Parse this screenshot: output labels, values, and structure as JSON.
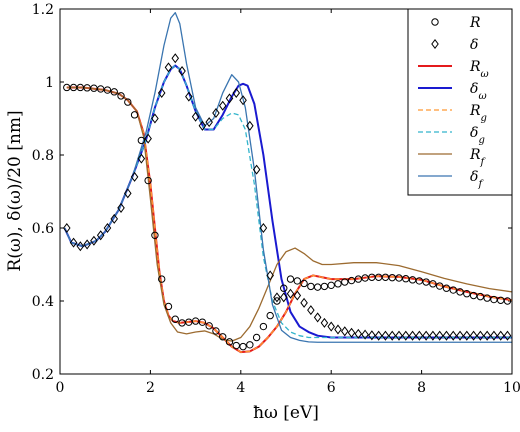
{
  "chart_data": {
    "type": "line",
    "title": "",
    "xlabel": "ħω [eV]",
    "ylabel": "R(ω),  δ(ω)/20 [nm]",
    "xlim": [
      0,
      10
    ],
    "ylim": [
      0.2,
      1.2
    ],
    "xticks": [
      0,
      2,
      4,
      6,
      8,
      10
    ],
    "yticks": [
      0.2,
      0.4,
      0.6,
      0.8,
      1,
      1.2
    ],
    "grid": false,
    "legend_position": "top-right",
    "series": [
      {
        "name": "R",
        "style": "markers",
        "marker": "circle",
        "color": "#000000",
        "x": [
          0.15,
          0.3,
          0.45,
          0.6,
          0.75,
          0.9,
          1.05,
          1.2,
          1.35,
          1.5,
          1.65,
          1.8,
          1.95,
          2.1,
          2.25,
          2.4,
          2.55,
          2.7,
          2.85,
          3.0,
          3.15,
          3.3,
          3.45,
          3.6,
          3.75,
          3.9,
          4.05,
          4.2,
          4.35,
          4.5,
          4.65,
          4.8,
          4.95,
          5.1,
          5.25,
          5.4,
          5.55,
          5.7,
          5.85,
          6.0,
          6.15,
          6.3,
          6.45,
          6.6,
          6.75,
          6.9,
          7.05,
          7.2,
          7.35,
          7.5,
          7.65,
          7.8,
          7.95,
          8.1,
          8.25,
          8.4,
          8.55,
          8.7,
          8.85,
          9.0,
          9.15,
          9.3,
          9.45,
          9.6,
          9.75,
          9.9
        ],
        "y": [
          0.985,
          0.985,
          0.985,
          0.984,
          0.983,
          0.981,
          0.978,
          0.973,
          0.962,
          0.945,
          0.91,
          0.84,
          0.73,
          0.58,
          0.46,
          0.385,
          0.35,
          0.34,
          0.342,
          0.345,
          0.342,
          0.332,
          0.318,
          0.302,
          0.288,
          0.278,
          0.275,
          0.28,
          0.3,
          0.33,
          0.36,
          0.4,
          0.435,
          0.46,
          0.455,
          0.448,
          0.44,
          0.438,
          0.44,
          0.443,
          0.447,
          0.452,
          0.456,
          0.46,
          0.463,
          0.465,
          0.465,
          0.465,
          0.464,
          0.463,
          0.461,
          0.458,
          0.455,
          0.452,
          0.447,
          0.441,
          0.435,
          0.43,
          0.425,
          0.42,
          0.415,
          0.412,
          0.408,
          0.404,
          0.402,
          0.4
        ]
      },
      {
        "name": "δ",
        "style": "markers",
        "marker": "diamond",
        "color": "#000000",
        "x": [
          0.15,
          0.3,
          0.45,
          0.6,
          0.75,
          0.9,
          1.05,
          1.2,
          1.35,
          1.5,
          1.65,
          1.8,
          1.95,
          2.1,
          2.25,
          2.4,
          2.55,
          2.7,
          2.85,
          3.0,
          3.15,
          3.3,
          3.45,
          3.6,
          3.75,
          3.9,
          4.05,
          4.2,
          4.35,
          4.5,
          4.65,
          4.8,
          4.95,
          5.1,
          5.25,
          5.4,
          5.55,
          5.7,
          5.85,
          6.0,
          6.15,
          6.3,
          6.45,
          6.6,
          6.75,
          6.9,
          7.05,
          7.2,
          7.35,
          7.5,
          7.65,
          7.8,
          7.95,
          8.1,
          8.25,
          8.4,
          8.55,
          8.7,
          8.85,
          9.0,
          9.15,
          9.3,
          9.45,
          9.6,
          9.75,
          9.9
        ],
        "y": [
          0.6,
          0.56,
          0.55,
          0.555,
          0.565,
          0.58,
          0.6,
          0.625,
          0.655,
          0.695,
          0.74,
          0.79,
          0.845,
          0.9,
          0.97,
          1.04,
          1.065,
          1.03,
          0.96,
          0.905,
          0.88,
          0.89,
          0.915,
          0.935,
          0.955,
          0.97,
          0.95,
          0.88,
          0.76,
          0.6,
          0.47,
          0.41,
          0.41,
          0.42,
          0.415,
          0.395,
          0.375,
          0.355,
          0.34,
          0.33,
          0.322,
          0.317,
          0.313,
          0.31,
          0.308,
          0.306,
          0.305,
          0.305,
          0.305,
          0.305,
          0.305,
          0.305,
          0.305,
          0.305,
          0.305,
          0.305,
          0.305,
          0.305,
          0.305,
          0.305,
          0.305,
          0.305,
          0.305,
          0.305,
          0.305,
          0.305
        ]
      },
      {
        "name": "R_ω",
        "style": "line",
        "color": "#e41a1c",
        "width": 2,
        "x": [
          0.15,
          0.5,
          1.0,
          1.3,
          1.5,
          1.7,
          1.85,
          2.0,
          2.1,
          2.2,
          2.3,
          2.4,
          2.5,
          2.65,
          2.8,
          3.0,
          3.2,
          3.4,
          3.6,
          3.8,
          4.0,
          4.2,
          4.4,
          4.6,
          4.8,
          5.0,
          5.2,
          5.4,
          5.6,
          5.8,
          6.0,
          6.5,
          7.0,
          7.5,
          8.0,
          8.5,
          9.0,
          9.5,
          10.0
        ],
        "y": [
          0.985,
          0.985,
          0.978,
          0.968,
          0.95,
          0.92,
          0.86,
          0.72,
          0.6,
          0.48,
          0.4,
          0.36,
          0.345,
          0.34,
          0.342,
          0.345,
          0.34,
          0.325,
          0.3,
          0.275,
          0.26,
          0.262,
          0.275,
          0.3,
          0.33,
          0.37,
          0.42,
          0.46,
          0.47,
          0.465,
          0.46,
          0.46,
          0.468,
          0.466,
          0.458,
          0.44,
          0.425,
          0.412,
          0.402
        ]
      },
      {
        "name": "δ_ω",
        "style": "line",
        "color": "#1a1ad0",
        "width": 2,
        "x": [
          0.1,
          0.25,
          0.5,
          0.8,
          1.0,
          1.3,
          1.6,
          1.9,
          2.1,
          2.3,
          2.45,
          2.55,
          2.65,
          2.8,
          3.0,
          3.2,
          3.4,
          3.6,
          3.8,
          3.95,
          4.05,
          4.15,
          4.3,
          4.5,
          4.7,
          4.9,
          5.1,
          5.3,
          5.5,
          5.7,
          6.0,
          6.5,
          7.0,
          8.0,
          9.0,
          10.0
        ],
        "y": [
          0.6,
          0.56,
          0.55,
          0.565,
          0.59,
          0.65,
          0.74,
          0.84,
          0.93,
          1.0,
          1.035,
          1.045,
          1.035,
          0.99,
          0.92,
          0.87,
          0.87,
          0.91,
          0.96,
          0.99,
          0.995,
          0.99,
          0.94,
          0.8,
          0.62,
          0.46,
          0.37,
          0.33,
          0.315,
          0.305,
          0.3,
          0.3,
          0.3,
          0.3,
          0.3,
          0.3
        ]
      },
      {
        "name": "R_g",
        "style": "dashed",
        "color": "#ff9933",
        "width": 1.3,
        "x": [
          0.15,
          0.5,
          1.0,
          1.3,
          1.5,
          1.7,
          1.85,
          2.0,
          2.1,
          2.2,
          2.3,
          2.4,
          2.5,
          2.65,
          2.8,
          3.0,
          3.2,
          3.4,
          3.6,
          3.8,
          4.0,
          4.2,
          4.4,
          4.6,
          4.8,
          5.0,
          5.2,
          5.4,
          5.6,
          5.8,
          6.0,
          6.5,
          7.0,
          7.5,
          8.0,
          8.5,
          9.0,
          9.5,
          10.0
        ],
        "y": [
          0.985,
          0.985,
          0.978,
          0.968,
          0.95,
          0.92,
          0.86,
          0.72,
          0.6,
          0.48,
          0.4,
          0.36,
          0.345,
          0.34,
          0.342,
          0.345,
          0.34,
          0.325,
          0.3,
          0.275,
          0.26,
          0.262,
          0.275,
          0.3,
          0.33,
          0.37,
          0.42,
          0.46,
          0.47,
          0.465,
          0.46,
          0.46,
          0.468,
          0.466,
          0.458,
          0.44,
          0.425,
          0.412,
          0.402
        ]
      },
      {
        "name": "δ_g",
        "style": "dashed",
        "color": "#33b5cc",
        "width": 1.3,
        "x": [
          0.1,
          0.25,
          0.5,
          0.8,
          1.0,
          1.3,
          1.6,
          1.9,
          2.1,
          2.3,
          2.45,
          2.55,
          2.65,
          2.8,
          3.0,
          3.2,
          3.4,
          3.6,
          3.8,
          3.95,
          4.1,
          4.3,
          4.5,
          4.7,
          4.9,
          5.1,
          5.3,
          5.5,
          5.7,
          6.0,
          6.5,
          7.0,
          8.0,
          9.0,
          10.0
        ],
        "y": [
          0.6,
          0.56,
          0.55,
          0.565,
          0.59,
          0.65,
          0.74,
          0.84,
          0.93,
          1.0,
          1.035,
          1.045,
          1.035,
          0.99,
          0.92,
          0.87,
          0.87,
          0.9,
          0.915,
          0.91,
          0.87,
          0.72,
          0.52,
          0.4,
          0.34,
          0.315,
          0.305,
          0.3,
          0.3,
          0.3,
          0.3,
          0.3,
          0.3,
          0.3,
          0.3
        ]
      },
      {
        "name": "R_f",
        "style": "line",
        "color": "#9c6b30",
        "width": 1.3,
        "x": [
          0.15,
          0.5,
          1.0,
          1.3,
          1.5,
          1.7,
          1.85,
          2.0,
          2.15,
          2.3,
          2.45,
          2.6,
          2.8,
          3.0,
          3.2,
          3.4,
          3.6,
          3.8,
          4.0,
          4.2,
          4.4,
          4.6,
          4.8,
          5.0,
          5.2,
          5.4,
          5.6,
          5.8,
          6.0,
          6.5,
          7.0,
          7.5,
          8.0,
          8.5,
          9.0,
          9.5,
          10.0
        ],
        "y": [
          0.985,
          0.985,
          0.978,
          0.968,
          0.95,
          0.92,
          0.85,
          0.68,
          0.5,
          0.39,
          0.34,
          0.315,
          0.31,
          0.315,
          0.318,
          0.31,
          0.295,
          0.29,
          0.3,
          0.33,
          0.38,
          0.44,
          0.5,
          0.535,
          0.545,
          0.53,
          0.51,
          0.5,
          0.5,
          0.505,
          0.505,
          0.497,
          0.48,
          0.462,
          0.447,
          0.434,
          0.425
        ]
      },
      {
        "name": "δ_f",
        "style": "line",
        "color": "#3a75b0",
        "width": 1.3,
        "x": [
          0.1,
          0.25,
          0.5,
          0.8,
          1.0,
          1.3,
          1.6,
          1.9,
          2.1,
          2.3,
          2.45,
          2.55,
          2.65,
          2.8,
          3.0,
          3.2,
          3.4,
          3.6,
          3.8,
          3.95,
          4.1,
          4.3,
          4.5,
          4.7,
          4.9,
          5.1,
          5.3,
          5.5,
          5.7,
          6.0,
          6.5,
          7.0,
          8.0,
          9.0,
          10.0
        ],
        "y": [
          0.6,
          0.56,
          0.55,
          0.565,
          0.59,
          0.65,
          0.74,
          0.86,
          0.97,
          1.1,
          1.175,
          1.19,
          1.16,
          1.05,
          0.93,
          0.88,
          0.9,
          0.97,
          1.02,
          1.0,
          0.93,
          0.76,
          0.54,
          0.39,
          0.32,
          0.3,
          0.292,
          0.288,
          0.287,
          0.287,
          0.287,
          0.287,
          0.287,
          0.287,
          0.287
        ]
      }
    ]
  }
}
